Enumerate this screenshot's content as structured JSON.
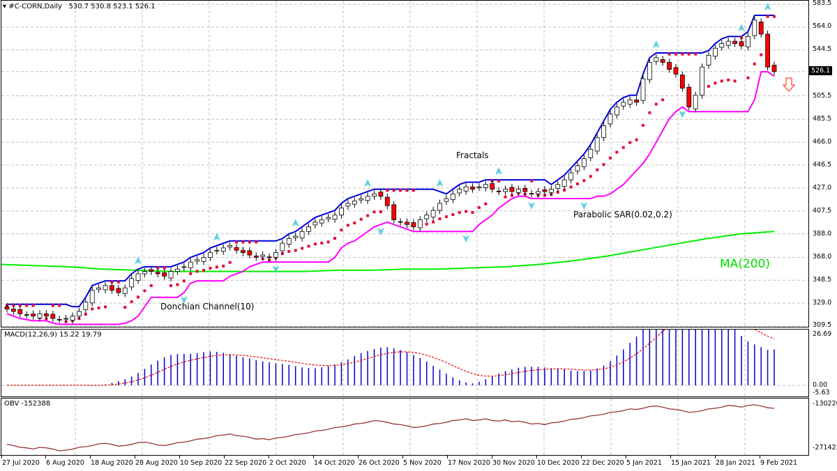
{
  "header": {
    "symbol": "#C-CORN,Daily",
    "ohlc": "530.7 530.8 523.1 526.1"
  },
  "price_axis": {
    "ticks": [
      "583.5",
      "564.0",
      "544.5",
      "505.5",
      "485.5",
      "466.0",
      "446.5",
      "427.0",
      "407.5",
      "388.0",
      "368.0",
      "348.5",
      "329.0",
      "309.5"
    ],
    "current_price": "526.1"
  },
  "macd_panel": {
    "title": "MACD(12,26,9) 15.22 19.79",
    "ticks": [
      "26.69",
      "0.00",
      "-5.63"
    ]
  },
  "obv_panel": {
    "title": "OBV -152388",
    "ticks": [
      "-130220",
      "-271422"
    ]
  },
  "annotations": {
    "fractals": "Fractals",
    "parabolic_sar": "Parabolic SAR(0.02,0.2)",
    "donchian": "Donchian Channel(10)",
    "ma": "MA(200)"
  },
  "x_axis": {
    "labels": [
      "27 Jul 2020",
      "6 Aug 2020",
      "18 Aug 2020",
      "28 Aug 2020",
      "10 Sep 2020",
      "22 Sep 2020",
      "2 Oct 2020",
      "14 Oct 2020",
      "26 Oct 2020",
      "5 Nov 2020",
      "17 Nov 2020",
      "30 Nov 2020",
      "10 Dec 2020",
      "22 Dec 2020",
      "5 Jan 2021",
      "15 Jan 2021",
      "28 Jan 2021",
      "9 Feb 2021"
    ]
  },
  "colors": {
    "bull_candle": "#ffffff",
    "bear_candle": "#ff0000",
    "donchian_upper": "#0000dd",
    "donchian_lower": "#ff00ff",
    "ma200": "#00ee00",
    "sar": "#e0103a",
    "fractals": "#40c8d8",
    "macd_hist": "#0000cc",
    "macd_signal": "#ee0000",
    "obv": "#993333",
    "sell_arrow": "#ff4020"
  },
  "chart_data": {
    "type": "candlestick",
    "title": "#C-CORN,Daily",
    "ohlc_last": {
      "open": 530.7,
      "high": 530.8,
      "low": 523.1,
      "close": 526.1
    },
    "ylim": [
      309.5,
      583.5
    ],
    "x_tick_labels": [
      "27 Jul 2020",
      "6 Aug 2020",
      "18 Aug 2020",
      "28 Aug 2020",
      "10 Sep 2020",
      "22 Sep 2020",
      "2 Oct 2020",
      "14 Oct 2020",
      "26 Oct 2020",
      "5 Nov 2020",
      "17 Nov 2020",
      "30 Nov 2020",
      "10 Dec 2020",
      "22 Dec 2020",
      "5 Jan 2021",
      "15 Jan 2021",
      "28 Jan 2021",
      "9 Feb 2021"
    ],
    "close_approx": [
      324,
      322,
      320,
      319,
      318,
      320,
      318,
      316,
      315,
      316,
      318,
      322,
      330,
      340,
      342,
      344,
      340,
      338,
      342,
      350,
      354,
      356,
      356,
      354,
      352,
      356,
      358,
      360,
      364,
      366,
      368,
      372,
      374,
      376,
      378,
      374,
      372,
      370,
      368,
      370,
      368,
      372,
      380,
      384,
      386,
      390,
      394,
      398,
      400,
      402,
      404,
      410,
      414,
      416,
      418,
      420,
      422,
      420,
      412,
      400,
      398,
      396,
      394,
      400,
      404,
      408,
      414,
      418,
      422,
      426,
      428,
      426,
      428,
      430,
      426,
      424,
      426,
      424,
      426,
      424,
      422,
      424,
      424,
      426,
      430,
      434,
      440,
      446,
      452,
      460,
      470,
      480,
      490,
      496,
      500,
      502,
      500,
      520,
      534,
      538,
      534,
      528,
      524,
      512,
      496,
      506,
      530,
      540,
      546,
      550,
      552,
      550,
      548,
      556,
      570,
      558,
      530,
      526.1
    ],
    "series": [
      {
        "name": "Donchian Channel(10) upper",
        "range_start": 342,
        "range_end": 572
      },
      {
        "name": "Donchian Channel(10) lower",
        "range_start": 324,
        "range_end": 531
      },
      {
        "name": "MA(200)",
        "values_approx": [
          362,
          361,
          360,
          358,
          357,
          356,
          356,
          356,
          356,
          356,
          357,
          357,
          358,
          358,
          359,
          360,
          362,
          365,
          369,
          374,
          379,
          384,
          388,
          390
        ]
      },
      {
        "name": "Parabolic SAR(0.02,0.2)",
        "note": "dots below price in uptrend, above in consolidations"
      },
      {
        "name": "MACD(12,26,9)",
        "last_macd": 15.22,
        "last_signal": 19.79,
        "range": [
          -5.63,
          26.69
        ]
      },
      {
        "name": "OBV",
        "last": -152388,
        "range": [
          -271422,
          -130220
        ]
      }
    ],
    "legend_annotations": [
      "Fractals",
      "Parabolic SAR(0.02,0.2)",
      "Donchian Channel(10)",
      "MA(200)"
    ]
  }
}
